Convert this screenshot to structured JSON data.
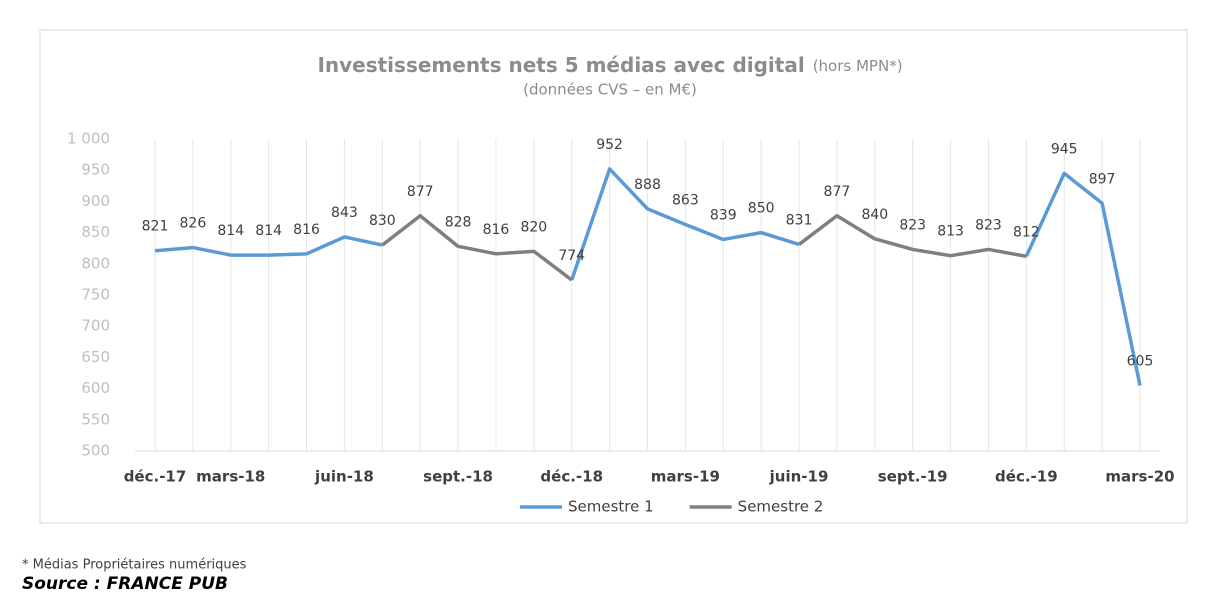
{
  "chart_data": {
    "type": "line",
    "title": "Investissements nets 5 médias avec digital",
    "title_note": "(hors MPN*)",
    "subtitle": "(données CVS – en M€)",
    "categories": [
      "déc.-17",
      null,
      "mars-18",
      null,
      null,
      "juin-18",
      null,
      null,
      "sept.-18",
      null,
      null,
      "déc.-18",
      null,
      null,
      "mars-19",
      null,
      null,
      "juin-19",
      null,
      null,
      "sept.-19",
      null,
      null,
      "déc.-19",
      null,
      null,
      "mars-20"
    ],
    "series": [
      {
        "name": "Semestre 1",
        "color": "#5b9bd5",
        "values": [
          821,
          826,
          814,
          814,
          816,
          843,
          830,
          null,
          null,
          null,
          null,
          774,
          952,
          888,
          863,
          839,
          850,
          831,
          null,
          null,
          null,
          null,
          null,
          812,
          945,
          897,
          605
        ]
      },
      {
        "name": "Semestre 2",
        "color": "#7f7f7f",
        "values": [
          null,
          null,
          null,
          null,
          null,
          null,
          830,
          877,
          828,
          816,
          820,
          774,
          null,
          null,
          null,
          null,
          null,
          831,
          877,
          840,
          823,
          813,
          823,
          812,
          null,
          null,
          null
        ]
      }
    ],
    "ylim": [
      500,
      1000
    ],
    "yticks": [
      500,
      550,
      600,
      650,
      700,
      750,
      800,
      850,
      900,
      950,
      {
        "value": 1000,
        "label": "1 000"
      }
    ],
    "grid": "x",
    "legend": "bottom",
    "footnote": "* Médias Propriétaires numériques",
    "source": "Source : FRANCE PUB"
  }
}
